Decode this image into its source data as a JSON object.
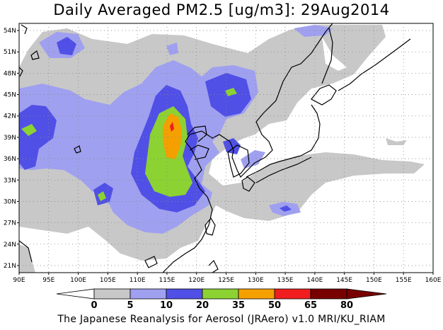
{
  "title": "Daily Averaged PM2.5 [ug/m3]: 29Aug2014",
  "credit": "The Japanese Reanalysis for Aerosol (JRAero) v1.0 MRI/KU_RIAM",
  "map": {
    "lon_labels": [
      "90E",
      "95E",
      "100E",
      "105E",
      "110E",
      "115E",
      "120E",
      "125E",
      "130E",
      "135E",
      "140E",
      "145E",
      "150E",
      "155E",
      "160E"
    ],
    "lat_labels": [
      "54N",
      "51N",
      "48N",
      "45N",
      "42N",
      "39N",
      "36N",
      "33N",
      "30N",
      "27N",
      "24N",
      "21N"
    ],
    "grid": true
  },
  "colorbar": {
    "labels": [
      "0",
      "5",
      "10",
      "20",
      "35",
      "50",
      "65",
      "80"
    ],
    "colors": [
      "#ffffff",
      "#c8c8c8",
      "#a0a0f0",
      "#5050e6",
      "#8cd232",
      "#f5a000",
      "#f01e1e",
      "#780000"
    ]
  }
}
